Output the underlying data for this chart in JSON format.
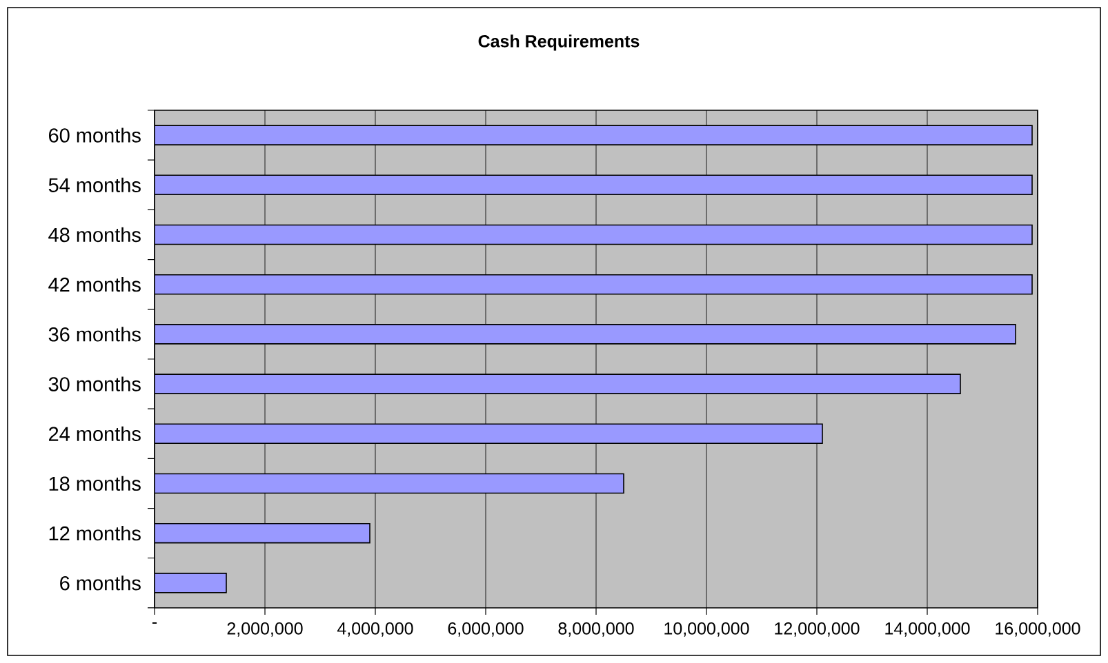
{
  "chart_data": {
    "type": "bar",
    "orientation": "horizontal",
    "title": "Cash Requirements",
    "categories": [
      "60 months",
      "54 months",
      "48 months",
      "42 months",
      "36 months",
      "30 months",
      "24 months",
      "18 months",
      "12 months",
      "6 months"
    ],
    "values": [
      15900000,
      15900000,
      15900000,
      15900000,
      15600000,
      14600000,
      12100000,
      8500000,
      3900000,
      1300000
    ],
    "color": "#9999ff",
    "xlim": [
      0,
      16000000
    ],
    "xticks": [
      {
        "value": 0,
        "label": "-"
      },
      {
        "value": 2000000,
        "label": "2,000,000"
      },
      {
        "value": 4000000,
        "label": "4,000,000"
      },
      {
        "value": 6000000,
        "label": "6,000,000"
      },
      {
        "value": 8000000,
        "label": "8,000,000"
      },
      {
        "value": 10000000,
        "label": "10,000,000"
      },
      {
        "value": 12000000,
        "label": "12,000,000"
      },
      {
        "value": 14000000,
        "label": "14,000,000"
      },
      {
        "value": 16000000,
        "label": "16,000,000"
      }
    ],
    "grid": "x"
  }
}
